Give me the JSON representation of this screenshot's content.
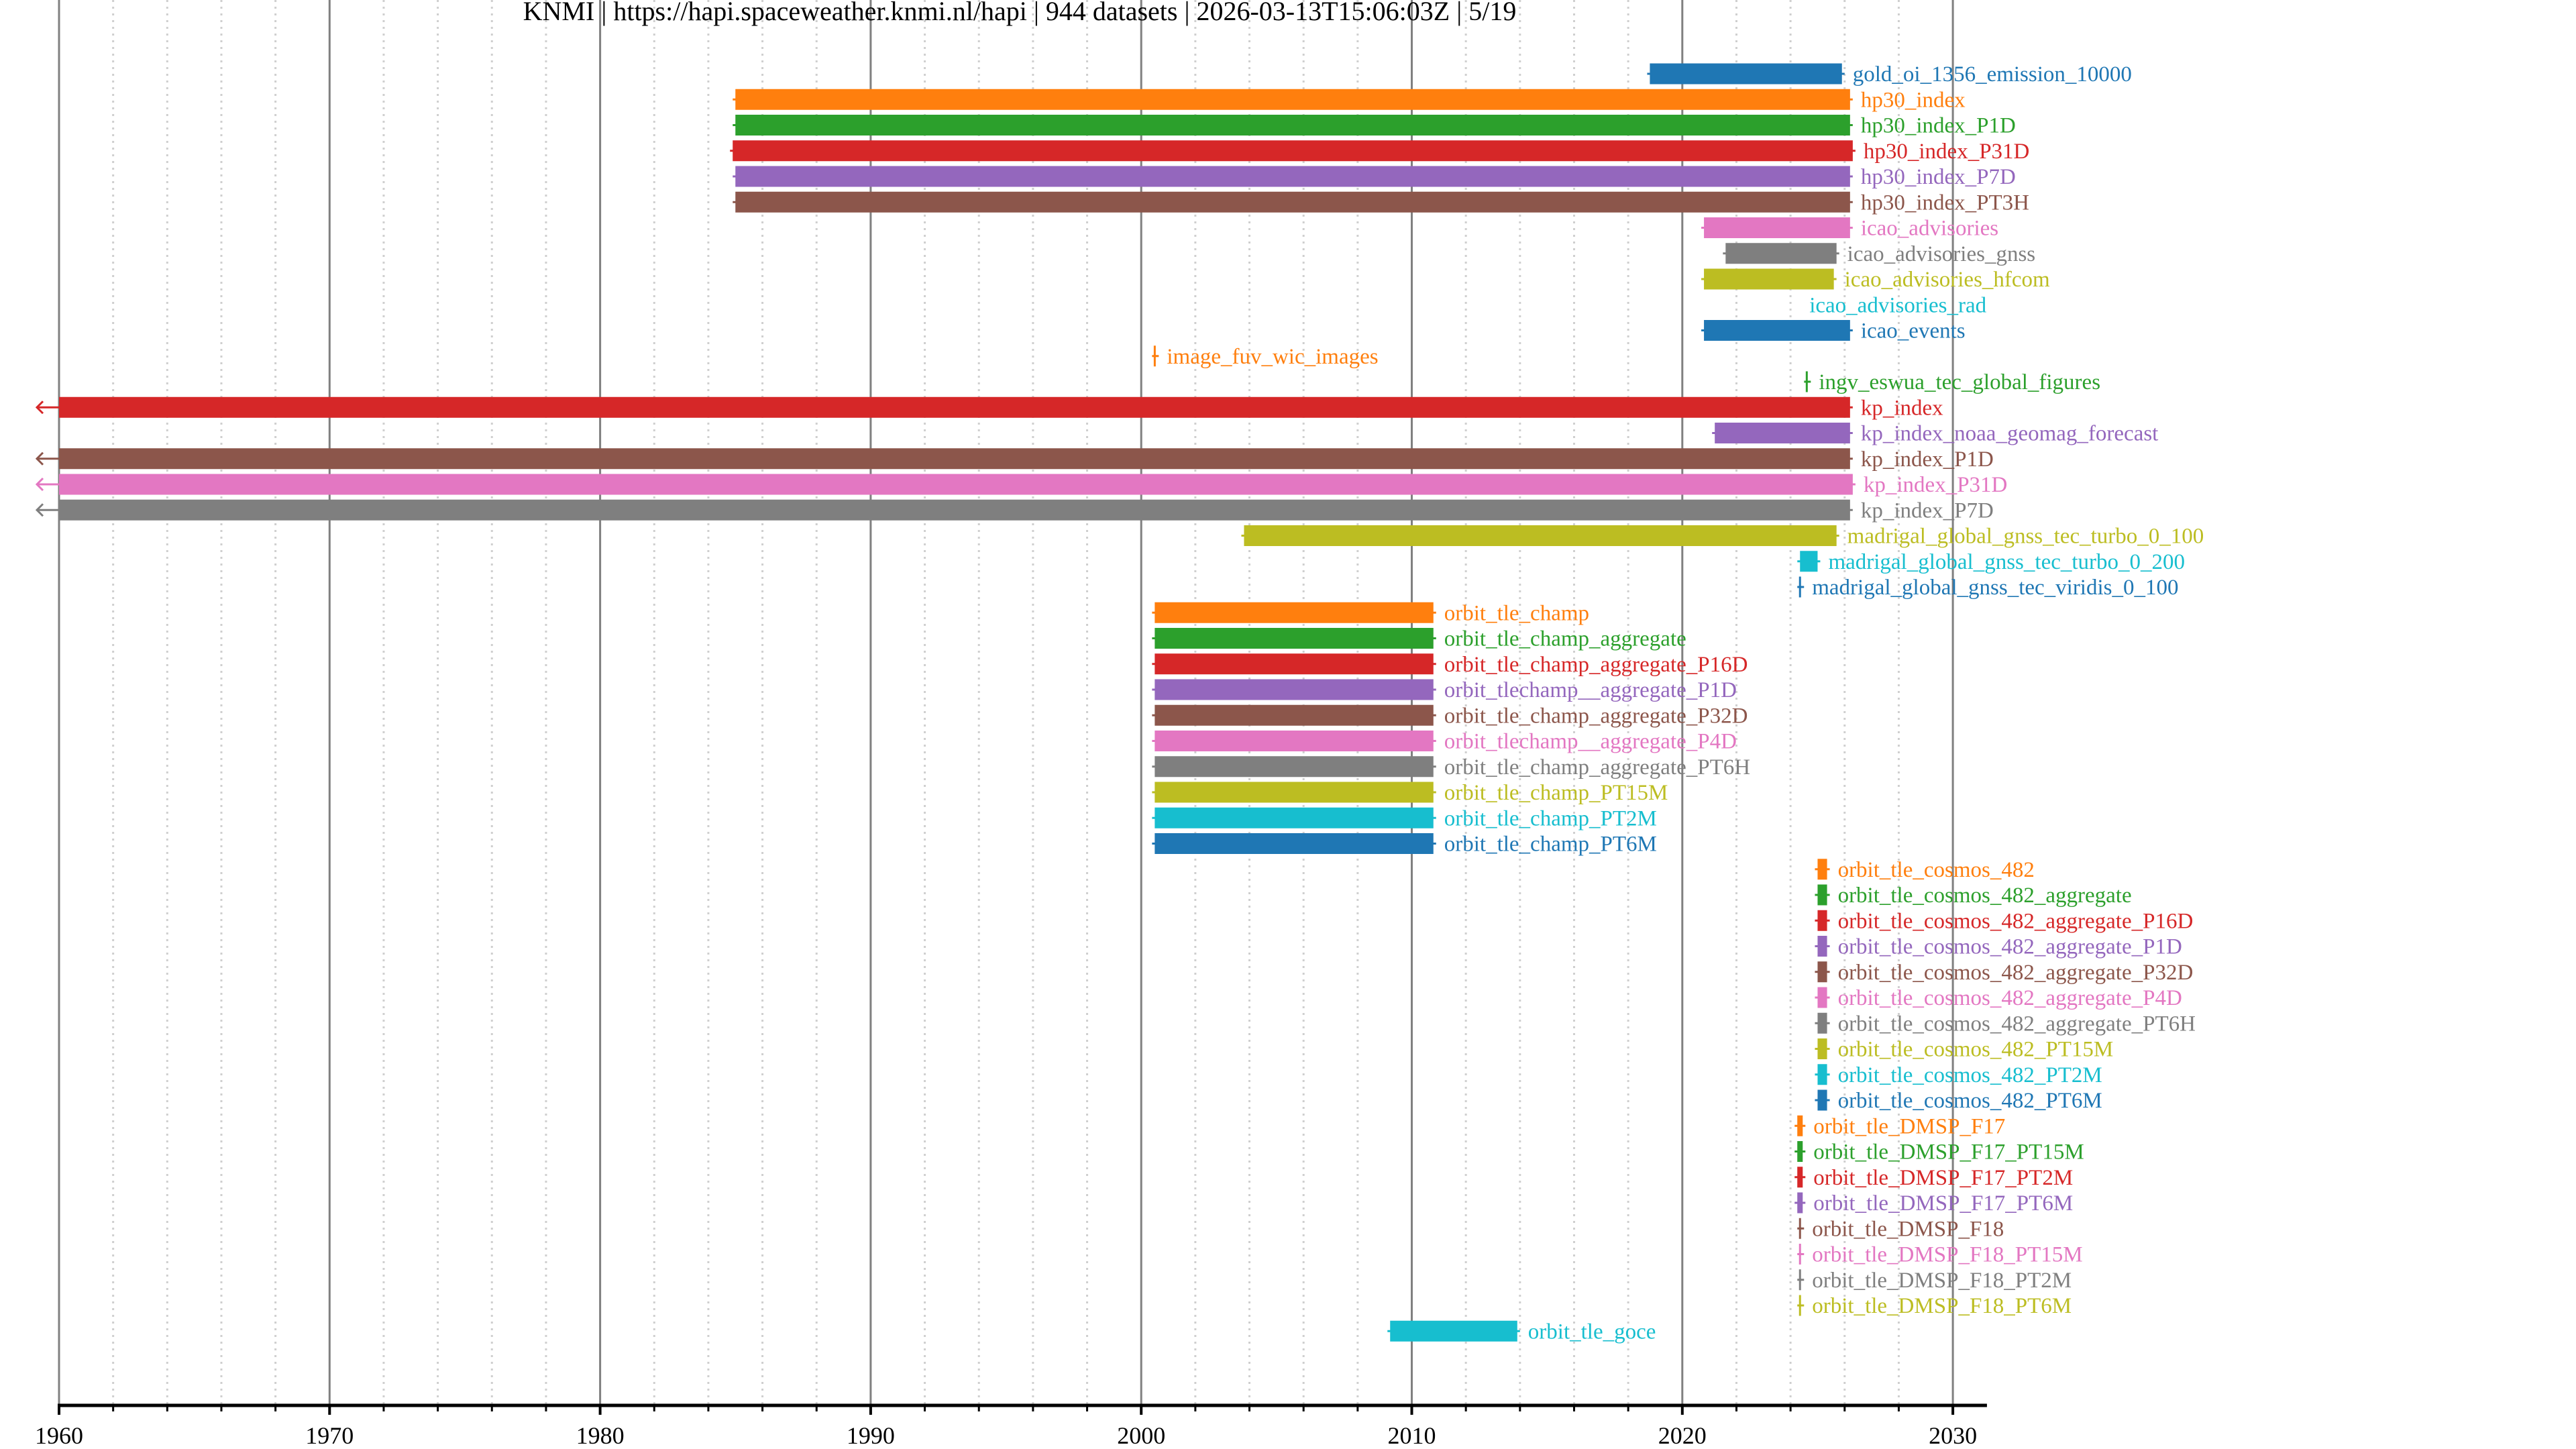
{
  "header": {
    "title": "KNMI | https://hapi.spaceweather.knmi.nl/hapi | 944 datasets | 2026-03-13T15:06:03Z | 5/19"
  },
  "chart_data": {
    "type": "bar",
    "subtype": "horizontal-timeline",
    "title": "KNMI | https://hapi.spaceweather.knmi.nl/hapi | 944 datasets | 2026-03-13T15:06:03Z | 5/19",
    "xlabel": "",
    "ylabel": "",
    "xlim": [
      1960,
      2031.26
    ],
    "x_ticks": [
      1960,
      1970,
      1980,
      1990,
      2000,
      2010,
      2020,
      2030
    ],
    "x_tick_labels": [
      "1960",
      "1970",
      "1980",
      "1990",
      "2000",
      "2010",
      "2020",
      "2030"
    ],
    "minor_tick_step_years": 2,
    "grid": {
      "major": true,
      "minor": true,
      "minor_style": "dotted"
    },
    "legend": "none (labels placed at right end of each bar)",
    "palette": [
      "#1f77b4",
      "#ff7f0e",
      "#2ca02c",
      "#d62728",
      "#9467bd",
      "#8c564b",
      "#e377c2",
      "#7f7f7f",
      "#bcbd22",
      "#17becf"
    ],
    "series": [
      {
        "name": "gold_oi_1356_emission_10000",
        "start": 2018.8,
        "end": 2025.9,
        "color": "#1f77b4"
      },
      {
        "name": "hp30_index",
        "start": 1985.0,
        "end": 2026.2,
        "color": "#ff7f0e"
      },
      {
        "name": "hp30_index_P1D",
        "start": 1985.0,
        "end": 2026.2,
        "color": "#2ca02c"
      },
      {
        "name": "hp30_index_P31D",
        "start": 1984.9,
        "end": 2026.3,
        "color": "#d62728"
      },
      {
        "name": "hp30_index_P7D",
        "start": 1985.0,
        "end": 2026.2,
        "color": "#9467bd"
      },
      {
        "name": "hp30_index_PT3H",
        "start": 1985.0,
        "end": 2026.2,
        "color": "#8c564b"
      },
      {
        "name": "icao_advisories",
        "start": 2020.8,
        "end": 2026.2,
        "color": "#e377c2"
      },
      {
        "name": "icao_advisories_gnss",
        "start": 2021.6,
        "end": 2025.7,
        "color": "#7f7f7f"
      },
      {
        "name": "icao_advisories_hfcom",
        "start": 2020.8,
        "end": 2025.6,
        "color": "#bcbd22"
      },
      {
        "name": "icao_advisories_rad",
        "start": 2024.3,
        "end": 2024.3,
        "color": "#17becf",
        "no_bar": true
      },
      {
        "name": "icao_events",
        "start": 2020.8,
        "end": 2026.2,
        "color": "#1f77b4"
      },
      {
        "name": "image_fuv_wic_images",
        "start": 2000.5,
        "end": 2000.5,
        "color": "#ff7f0e"
      },
      {
        "name": "ingv_eswua_tec_global_figures",
        "start": 2024.6,
        "end": 2024.6,
        "color": "#2ca02c"
      },
      {
        "name": "kp_index",
        "start": 1932,
        "end": 2026.2,
        "color": "#d62728",
        "extends_left": true
      },
      {
        "name": "kp_index_noaa_geomag_forecast",
        "start": 2021.2,
        "end": 2026.2,
        "color": "#9467bd"
      },
      {
        "name": "kp_index_P1D",
        "start": 1932,
        "end": 2026.2,
        "color": "#8c564b",
        "extends_left": true
      },
      {
        "name": "kp_index_P31D",
        "start": 1932,
        "end": 2026.3,
        "color": "#e377c2",
        "extends_left": true
      },
      {
        "name": "kp_index_P7D",
        "start": 1932,
        "end": 2026.2,
        "color": "#7f7f7f",
        "extends_left": true
      },
      {
        "name": "madrigal_global_gnss_tec_turbo_0_100",
        "start": 2003.8,
        "end": 2025.7,
        "color": "#bcbd22"
      },
      {
        "name": "madrigal_global_gnss_tec_turbo_0_200",
        "start": 2024.35,
        "end": 2025.0,
        "color": "#17becf"
      },
      {
        "name": "madrigal_global_gnss_tec_viridis_0_100",
        "start": 2024.35,
        "end": 2024.35,
        "color": "#1f77b4"
      },
      {
        "name": "orbit_tle_champ",
        "start": 2000.5,
        "end": 2010.8,
        "color": "#ff7f0e"
      },
      {
        "name": "orbit_tle_champ_aggregate",
        "start": 2000.5,
        "end": 2010.8,
        "color": "#2ca02c"
      },
      {
        "name": "orbit_tle_champ_aggregate_P16D",
        "start": 2000.5,
        "end": 2010.8,
        "color": "#d62728"
      },
      {
        "name": "orbit_tlechamp__aggregate_P1D",
        "start": 2000.5,
        "end": 2010.8,
        "color": "#9467bd"
      },
      {
        "name": "orbit_tle_champ_aggregate_P32D",
        "start": 2000.5,
        "end": 2010.8,
        "color": "#8c564b"
      },
      {
        "name": "orbit_tlechamp__aggregate_P4D",
        "start": 2000.5,
        "end": 2010.8,
        "color": "#e377c2"
      },
      {
        "name": "orbit_tle_champ_aggregate_PT6H",
        "start": 2000.5,
        "end": 2010.8,
        "color": "#7f7f7f"
      },
      {
        "name": "orbit_tle_champ_PT15M",
        "start": 2000.5,
        "end": 2010.8,
        "color": "#bcbd22"
      },
      {
        "name": "orbit_tle_champ_PT2M",
        "start": 2000.5,
        "end": 2010.8,
        "color": "#17becf"
      },
      {
        "name": "orbit_tle_champ_PT6M",
        "start": 2000.5,
        "end": 2010.8,
        "color": "#1f77b4"
      },
      {
        "name": "orbit_tle_cosmos_482",
        "start": 2025.0,
        "end": 2025.35,
        "color": "#ff7f0e"
      },
      {
        "name": "orbit_tle_cosmos_482_aggregate",
        "start": 2025.0,
        "end": 2025.35,
        "color": "#2ca02c"
      },
      {
        "name": "orbit_tle_cosmos_482_aggregate_P16D",
        "start": 2025.0,
        "end": 2025.35,
        "color": "#d62728"
      },
      {
        "name": "orbit_tle_cosmos_482_aggregate_P1D",
        "start": 2025.0,
        "end": 2025.35,
        "color": "#9467bd"
      },
      {
        "name": "orbit_tle_cosmos_482_aggregate_P32D",
        "start": 2025.0,
        "end": 2025.35,
        "color": "#8c564b"
      },
      {
        "name": "orbit_tle_cosmos_482_aggregate_P4D",
        "start": 2025.0,
        "end": 2025.35,
        "color": "#e377c2"
      },
      {
        "name": "orbit_tle_cosmos_482_aggregate_PT6H",
        "start": 2025.0,
        "end": 2025.35,
        "color": "#7f7f7f"
      },
      {
        "name": "orbit_tle_cosmos_482_PT15M",
        "start": 2025.0,
        "end": 2025.35,
        "color": "#bcbd22"
      },
      {
        "name": "orbit_tle_cosmos_482_PT2M",
        "start": 2025.0,
        "end": 2025.35,
        "color": "#17becf"
      },
      {
        "name": "orbit_tle_cosmos_482_PT6M",
        "start": 2025.0,
        "end": 2025.35,
        "color": "#1f77b4"
      },
      {
        "name": "orbit_tle_DMSP_F17",
        "start": 2024.25,
        "end": 2024.45,
        "color": "#ff7f0e"
      },
      {
        "name": "orbit_tle_DMSP_F17_PT15M",
        "start": 2024.25,
        "end": 2024.45,
        "color": "#2ca02c"
      },
      {
        "name": "orbit_tle_DMSP_F17_PT2M",
        "start": 2024.25,
        "end": 2024.45,
        "color": "#d62728"
      },
      {
        "name": "orbit_tle_DMSP_F17_PT6M",
        "start": 2024.25,
        "end": 2024.45,
        "color": "#9467bd"
      },
      {
        "name": "orbit_tle_DMSP_F18",
        "start": 2024.35,
        "end": 2024.4,
        "color": "#8c564b"
      },
      {
        "name": "orbit_tle_DMSP_F18_PT15M",
        "start": 2024.35,
        "end": 2024.4,
        "color": "#e377c2"
      },
      {
        "name": "orbit_tle_DMSP_F18_PT2M",
        "start": 2024.35,
        "end": 2024.4,
        "color": "#7f7f7f"
      },
      {
        "name": "orbit_tle_DMSP_F18_PT6M",
        "start": 2024.35,
        "end": 2024.4,
        "color": "#bcbd22"
      },
      {
        "name": "orbit_tle_goce",
        "start": 2009.2,
        "end": 2013.9,
        "color": "#17becf"
      }
    ]
  }
}
